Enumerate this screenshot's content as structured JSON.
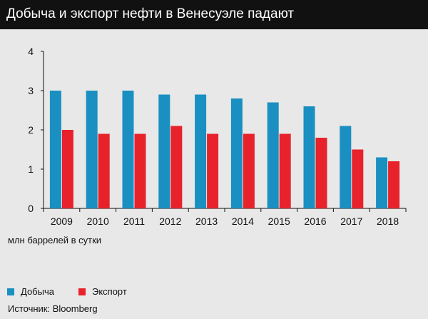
{
  "header": {
    "title": "Добыча и экспорт нефти в Венесуэле падают"
  },
  "footer": {
    "units": "млн баррелей в сутки",
    "source": "Источник: Bloomberg"
  },
  "colors": {
    "production": "#1a8fc1",
    "export": "#e8222b",
    "axis": "#111111"
  },
  "chart_data": {
    "type": "bar",
    "title": "Добыча и экспорт нефти в Венесуэле падают",
    "ylabel": "млн баррелей в сутки",
    "ylim": [
      0,
      4
    ],
    "yticks": [
      "0",
      "1",
      "2",
      "3",
      "4"
    ],
    "categories": [
      "2009",
      "2010",
      "2011",
      "2012",
      "2013",
      "2014",
      "2015",
      "2016",
      "2017",
      "2018"
    ],
    "series": [
      {
        "name": "Добыча",
        "values": [
          3.0,
          3.0,
          3.0,
          2.9,
          2.9,
          2.8,
          2.7,
          2.6,
          2.1,
          1.3
        ]
      },
      {
        "name": "Экспорт",
        "values": [
          2.0,
          1.9,
          1.9,
          2.1,
          1.9,
          1.9,
          1.9,
          1.8,
          1.5,
          1.2
        ]
      }
    ],
    "legend": "bottom-left",
    "grid": false
  }
}
